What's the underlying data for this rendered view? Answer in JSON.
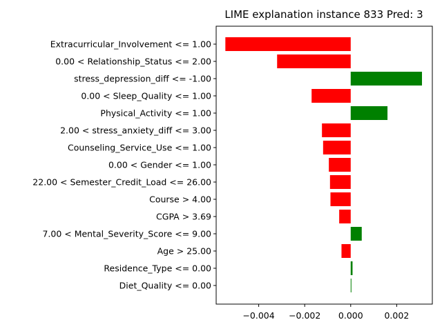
{
  "chart_data": {
    "type": "bar",
    "orientation": "horizontal",
    "title": "LIME explanation instance 833 Pred: 3",
    "xlabel": "",
    "ylabel": "",
    "categories": [
      "Extracurricular_Involvement <= 1.00",
      "0.00 < Relationship_Status <= 2.00",
      "stress_depression_diff <= -1.00",
      "0.00 < Sleep_Quality <= 1.00",
      "Physical_Activity <= 1.00",
      "2.00 < stress_anxiety_diff <= 3.00",
      "Counseling_Service_Use <= 1.00",
      "0.00 < Gender <= 1.00",
      "22.00 < Semester_Credit_Load <= 26.00",
      "Course > 4.00",
      "CGPA > 3.69",
      "7.00 < Mental_Severity_Score <= 9.00",
      "Age > 25.00",
      "Residence_Type <= 0.00",
      "Diet_Quality <= 0.00"
    ],
    "values": [
      -0.00545,
      -0.0032,
      0.0031,
      -0.0017,
      0.0016,
      -0.00125,
      -0.0012,
      -0.00095,
      -0.0009,
      -0.00088,
      -0.0005,
      0.00048,
      -0.0004,
      8e-05,
      3e-05
    ],
    "xlim": [
      -0.00585,
      0.00355
    ],
    "xticks": [
      -0.004,
      -0.002,
      0.0,
      0.002
    ],
    "xtick_labels": [
      "−0.004",
      "−0.002",
      "0.000",
      "0.002"
    ],
    "colors": {
      "positive": "#008000",
      "negative": "#ff0000"
    },
    "grid": false,
    "legend": "none"
  }
}
